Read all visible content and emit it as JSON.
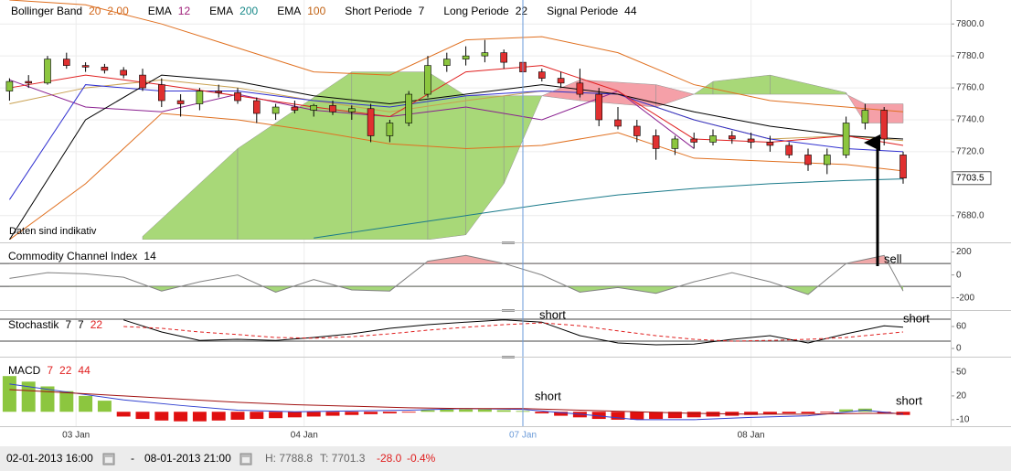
{
  "chart_data": [
    {
      "type": "candlestick",
      "title": [
        [
          {
            "text": "Bollinger Band",
            "color": "#000000"
          },
          {
            "text": "20",
            "color": "#d2691e"
          },
          {
            "text": "2.00",
            "color": "#d2691e"
          }
        ],
        [
          {
            "text": "EMA",
            "color": "#000000"
          },
          {
            "text": "12",
            "color": "#a0207a"
          }
        ],
        [
          {
            "text": "EMA",
            "color": "#000000"
          },
          {
            "text": "200",
            "color": "#1a8a8a"
          }
        ],
        [
          {
            "text": "EMA",
            "color": "#000000"
          },
          {
            "text": "100",
            "color": "#c06010"
          }
        ],
        [
          {
            "text": "Short Periode",
            "color": "#000000"
          },
          {
            "text": "7",
            "color": "#000000"
          }
        ],
        [
          {
            "text": "Long Periode",
            "color": "#000000"
          },
          {
            "text": "22",
            "color": "#000000"
          }
        ],
        [
          {
            "text": "Signal Periode",
            "color": "#000000"
          },
          {
            "text": "44",
            "color": "#000000"
          }
        ]
      ],
      "note": "Daten sind indikativ",
      "xlim": [
        -0.5,
        49.5
      ],
      "ylim": [
        7665,
        7815
      ],
      "yticks": [
        {
          "value": 7800,
          "label": "7800.0"
        },
        {
          "value": 7780,
          "label": "7780.0"
        },
        {
          "value": 7760,
          "label": "7760.0"
        },
        {
          "value": 7740,
          "label": "7740.0"
        },
        {
          "value": 7720,
          "label": "7720.0"
        },
        {
          "value": 7680,
          "label": "7680.0"
        }
      ],
      "grid": true,
      "x": [
        0,
        1,
        2,
        3,
        4,
        5,
        6,
        7,
        8,
        9,
        10,
        11,
        12,
        13,
        14,
        15,
        16,
        17,
        18,
        19,
        20,
        21,
        22,
        23,
        24,
        25,
        26,
        27,
        28,
        29,
        30,
        31,
        32,
        33,
        34,
        35,
        36,
        37,
        38,
        39,
        40,
        41,
        42,
        43,
        44,
        45,
        46,
        47
      ],
      "open": [
        7758,
        7764,
        7763,
        7778,
        7774,
        7773,
        7771,
        7768,
        7762,
        7752,
        7750,
        7758,
        7757,
        7752,
        7744,
        7748,
        7746,
        7749,
        7745,
        7747,
        7730,
        7738,
        7756,
        7774,
        7778,
        7780,
        7782,
        7776,
        7770,
        7766,
        7763,
        7756,
        7740,
        7736,
        7730,
        7722,
        7728,
        7726,
        7730,
        7728,
        7726,
        7724,
        7718,
        7712,
        7718,
        7738,
        7746,
        7718
      ],
      "high": [
        7766,
        7768,
        7780,
        7782,
        7776,
        7775,
        7773,
        7772,
        7766,
        7756,
        7760,
        7762,
        7760,
        7754,
        7750,
        7752,
        7750,
        7752,
        7749,
        7750,
        7740,
        7758,
        7780,
        7782,
        7786,
        7790,
        7784,
        7778,
        7772,
        7770,
        7772,
        7760,
        7748,
        7740,
        7734,
        7730,
        7732,
        7734,
        7733,
        7732,
        7730,
        7726,
        7722,
        7722,
        7742,
        7750,
        7748,
        7720
      ],
      "low": [
        7752,
        7760,
        7762,
        7772,
        7770,
        7769,
        7766,
        7758,
        7748,
        7742,
        7746,
        7754,
        7750,
        7738,
        7740,
        7744,
        7742,
        7743,
        7740,
        7726,
        7726,
        7736,
        7754,
        7770,
        7774,
        7776,
        7772,
        7768,
        7764,
        7760,
        7754,
        7736,
        7734,
        7726,
        7715,
        7718,
        7722,
        7724,
        7725,
        7722,
        7720,
        7716,
        7708,
        7706,
        7716,
        7734,
        7724,
        7700
      ],
      "close": [
        7764,
        7763,
        7778,
        7774,
        7773,
        7771,
        7768,
        7760,
        7752,
        7750,
        7758,
        7757,
        7752,
        7744,
        7748,
        7746,
        7749,
        7745,
        7747,
        7730,
        7738,
        7756,
        7774,
        7778,
        7780,
        7782,
        7776,
        7770,
        7766,
        7763,
        7756,
        7740,
        7736,
        7730,
        7722,
        7728,
        7726,
        7730,
        7728,
        7726,
        7724,
        7718,
        7712,
        7718,
        7738,
        7746,
        7728,
        7703.5
      ],
      "up_color": "#8cc63f",
      "down_color": "#e03030",
      "last_price": 7703.5,
      "cloud": {
        "x": [
          7,
          12,
          18,
          22,
          24,
          26,
          28,
          30,
          34,
          36,
          37,
          40,
          44,
          45,
          47
        ],
        "span_a": [
          7667,
          7722,
          7770,
          7770,
          7755,
          7755,
          7755,
          7752,
          7748,
          7756,
          7764,
          7768,
          7757,
          7738,
          7738
        ],
        "span_b": [
          7665,
          7665,
          7665,
          7665,
          7668,
          7700,
          7755,
          7765,
          7762,
          7756,
          7756,
          7756,
          7756,
          7750,
          7750
        ],
        "bull_color": "#a8d878",
        "bear_color": "#f5a0a8"
      },
      "series": [
        {
          "color": "#1a7a8a",
          "x": [
            0,
            4,
            8,
            12,
            16,
            20,
            24,
            28,
            32,
            36,
            40,
            44,
            47
          ],
          "values": [
            null,
            null,
            null,
            null,
            7666,
            7673,
            7680,
            7687,
            7693,
            7697,
            7700,
            7702,
            7703
          ]
        },
        {
          "color": "#e07020",
          "x": [
            0,
            4,
            8,
            12,
            16,
            20,
            24,
            28,
            32,
            36,
            40,
            44,
            47
          ],
          "values": [
            7815,
            7812,
            7800,
            7785,
            7770,
            7768,
            7790,
            7792,
            7782,
            7762,
            7752,
            7748,
            7745
          ]
        },
        {
          "color": "#e07020",
          "x": [
            0,
            4,
            8,
            12,
            16,
            20,
            24,
            28,
            32,
            36,
            40,
            44,
            47
          ],
          "values": [
            7665,
            7700,
            7744,
            7740,
            7733,
            7725,
            7722,
            7724,
            7732,
            7716,
            7714,
            7712,
            7708
          ]
        },
        {
          "color": "#c8a050",
          "x": [
            0,
            4,
            8,
            12,
            16,
            20,
            24,
            28,
            32,
            36,
            40,
            44,
            47
          ],
          "values": [
            7750,
            7760,
            7765,
            7760,
            7752,
            7745,
            7752,
            7758,
            7756,
            7740,
            7728,
            7730,
            7727
          ]
        },
        {
          "color": "#8a2090",
          "x": [
            0,
            4,
            8,
            12,
            16,
            20,
            24,
            28,
            32,
            36,
            40,
            44,
            47
          ],
          "values": [
            7765,
            7748,
            7745,
            7756,
            7746,
            7742,
            7748,
            7740,
            7758,
            7722,
            null,
            null,
            null
          ]
        },
        {
          "color": "#3030d0",
          "x": [
            0,
            4,
            8,
            12,
            16,
            20,
            24,
            28,
            32,
            36,
            40,
            44,
            47
          ],
          "values": [
            7690,
            7762,
            7758,
            7758,
            7752,
            7748,
            7755,
            7758,
            7756,
            7740,
            7728,
            7722,
            7720
          ]
        },
        {
          "color": "#000000",
          "x": [
            0,
            4,
            8,
            12,
            16,
            20,
            24,
            28,
            32,
            36,
            40,
            44,
            47
          ],
          "values": [
            7665,
            7740,
            7768,
            7764,
            7755,
            7750,
            7756,
            7762,
            7756,
            7745,
            7736,
            7730,
            7728
          ]
        },
        {
          "color": "#e02020",
          "x": [
            0,
            4,
            8,
            12,
            16,
            20,
            24,
            28,
            32,
            36,
            40,
            44,
            47
          ],
          "values": [
            7760,
            7768,
            7762,
            7755,
            7748,
            7742,
            7770,
            7774,
            7758,
            7728,
            7726,
            7730,
            7724
          ]
        }
      ]
    },
    {
      "type": "line",
      "title": [
        [
          {
            "text": "Commodity Channel Index",
            "color": "#000000"
          },
          {
            "text": "14",
            "color": "#000000"
          }
        ]
      ],
      "annotation": "sell",
      "xlim": [
        -0.5,
        49.5
      ],
      "ylim": [
        -250,
        260
      ],
      "yticks": [
        200,
        0,
        -200
      ],
      "levels": [
        100,
        -100
      ],
      "fill": {
        "above_color": "#f0a8a8",
        "below_color": "#a5d77a"
      },
      "series": [
        {
          "color": "#808080",
          "x": [
            0,
            2,
            4,
            6,
            8,
            10,
            12,
            14,
            16,
            18,
            20,
            22,
            24,
            26,
            28,
            30,
            32,
            34,
            36,
            38,
            40,
            42,
            44,
            46,
            47
          ],
          "values": [
            -30,
            20,
            10,
            -20,
            -140,
            -60,
            0,
            -150,
            -40,
            -130,
            -140,
            120,
            170,
            100,
            0,
            -150,
            -110,
            -160,
            -60,
            20,
            -60,
            -170,
            100,
            170,
            -140
          ]
        }
      ]
    },
    {
      "type": "line",
      "title": [
        [
          {
            "text": "Stochastik",
            "color": "#000000"
          },
          {
            "text": "7",
            "color": "#000000"
          },
          {
            "text": "7",
            "color": "#000000"
          },
          {
            "text": "22",
            "color": "#e02020"
          }
        ]
      ],
      "annotation": "short",
      "xlim": [
        -0.5,
        49.5
      ],
      "ylim": [
        -15,
        95
      ],
      "yticks": [
        60,
        0
      ],
      "levels": [
        80,
        20
      ],
      "series": [
        {
          "color": "#000000",
          "x": [
            6,
            8,
            10,
            12,
            14,
            16,
            18,
            20,
            22,
            24,
            26,
            28,
            30,
            32,
            34,
            36,
            38,
            40,
            42,
            44,
            46,
            47
          ],
          "values": [
            78,
            45,
            22,
            25,
            22,
            30,
            40,
            55,
            65,
            72,
            78,
            72,
            35,
            15,
            10,
            12,
            25,
            35,
            15,
            40,
            62,
            58
          ]
        },
        {
          "color": "#e02020",
          "dashed": true,
          "x": [
            6,
            8,
            10,
            12,
            14,
            16,
            18,
            20,
            22,
            24,
            26,
            28,
            30,
            32,
            34,
            36,
            38,
            40,
            42,
            44,
            46,
            47
          ],
          "values": [
            60,
            55,
            45,
            38,
            30,
            28,
            32,
            40,
            50,
            58,
            65,
            70,
            62,
            48,
            35,
            25,
            20,
            22,
            25,
            30,
            40,
            45
          ]
        }
      ]
    },
    {
      "type": "bar",
      "title": [
        [
          {
            "text": "MACD",
            "color": "#000000"
          },
          {
            "text": "7",
            "color": "#e02020"
          },
          {
            "text": "22",
            "color": "#e02020"
          },
          {
            "text": "44",
            "color": "#e02020"
          }
        ]
      ],
      "annotation": "short",
      "xlim": [
        -0.5,
        49.5
      ],
      "ylim": [
        -17,
        66
      ],
      "yticks": [
        50,
        20,
        -10
      ],
      "xticks": [
        {
          "value": 3.5,
          "label": "03 Jan"
        },
        {
          "value": 15.5,
          "label": "04 Jan"
        },
        {
          "value": 27,
          "label": "07 Jan"
        },
        {
          "value": 39,
          "label": "08 Jan"
        }
      ],
      "cursor_tick": 2,
      "cursor_color": "#6a9ad8",
      "x": [
        0,
        1,
        2,
        3,
        4,
        5,
        6,
        7,
        8,
        9,
        10,
        11,
        12,
        13,
        14,
        15,
        16,
        17,
        18,
        19,
        20,
        21,
        22,
        23,
        24,
        25,
        26,
        27,
        28,
        29,
        30,
        31,
        32,
        33,
        34,
        35,
        36,
        37,
        38,
        39,
        40,
        41,
        42,
        43,
        44,
        45,
        46,
        47
      ],
      "values": [
        45,
        38,
        32,
        26,
        20,
        14,
        -6,
        -9,
        -11,
        -12,
        -12,
        -11,
        -10,
        -9,
        -8,
        -7,
        -6,
        -5,
        -4,
        -3,
        -2,
        -1,
        2,
        3,
        3,
        3,
        2,
        1,
        -2,
        -5,
        -7,
        -9,
        -10,
        -10,
        -9,
        -8,
        -7,
        -6,
        -5,
        -4,
        -3,
        -2,
        -2,
        -1,
        3,
        4,
        -2,
        -4
      ],
      "pos_color": "#8cc63f",
      "neg_color": "#e01010",
      "series": [
        {
          "color": "#3040d0",
          "x": [
            0,
            3,
            6,
            9,
            12,
            15,
            18,
            21,
            24,
            27,
            30,
            33,
            36,
            39,
            42,
            45,
            47
          ],
          "values": [
            35,
            25,
            15,
            8,
            2,
            0,
            1,
            2,
            4,
            3,
            -3,
            -10,
            -10,
            -7,
            -5,
            2,
            -3
          ]
        },
        {
          "color": "#a01010",
          "x": [
            0,
            3,
            6,
            9,
            12,
            15,
            18,
            21,
            24,
            27,
            30,
            33,
            36,
            39,
            42,
            45,
            47
          ],
          "values": [
            28,
            24,
            20,
            16,
            12,
            9,
            7,
            5,
            4,
            4,
            2,
            0,
            -2,
            -3,
            -3,
            -2,
            -2
          ]
        }
      ]
    }
  ],
  "status_bar": {
    "from": "02-01-2013 16:00",
    "separator": "-",
    "to": "08-01-2013 21:00",
    "high": "H: 7788.8",
    "low": "T: 7701.3",
    "change": "-28.0",
    "change_pct": "-0.4%"
  }
}
